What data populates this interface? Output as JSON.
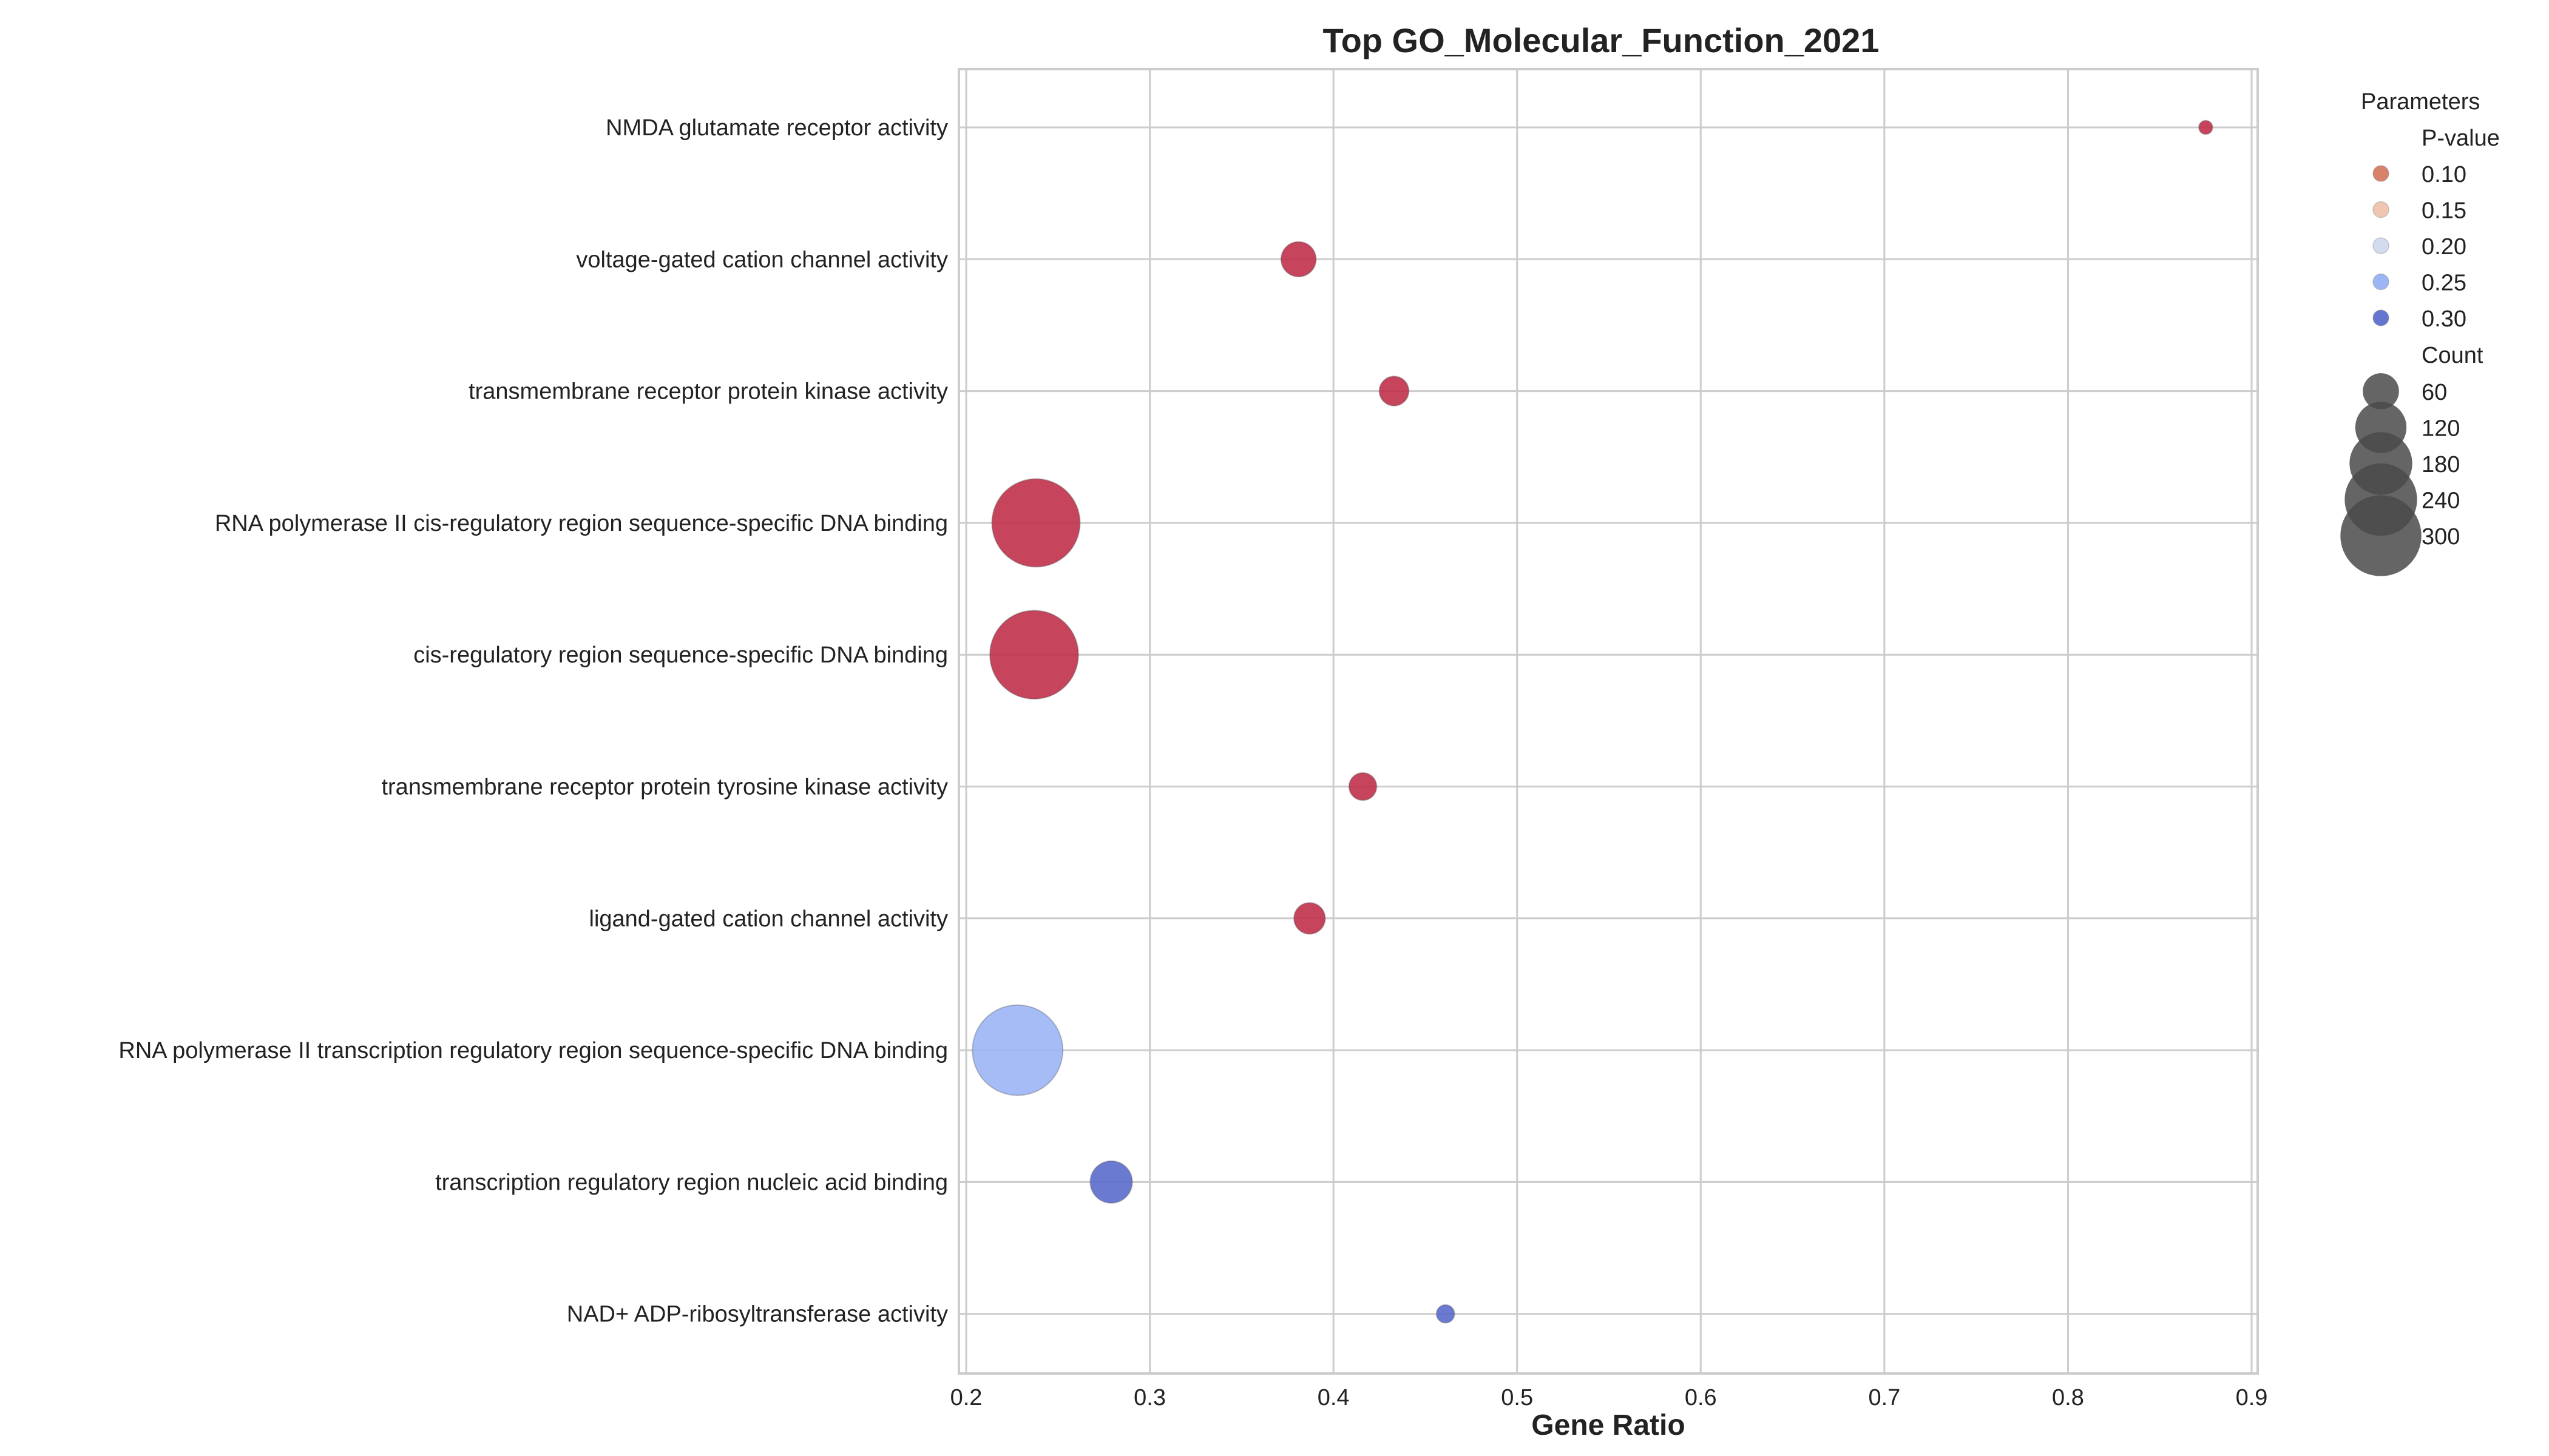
{
  "chart_data": {
    "type": "scatter",
    "title": "Top GO_Molecular_Function_2021",
    "xlabel": "Gene Ratio",
    "ylabel": "",
    "xlim": [
      0.2,
      0.9
    ],
    "xticks": [
      "0.2",
      "0.3",
      "0.4",
      "0.5",
      "0.6",
      "0.7",
      "0.8",
      "0.9"
    ],
    "grid": true,
    "categories": [
      "NMDA glutamate receptor activity",
      "voltage-gated cation channel activity",
      "transmembrane receptor protein kinase activity",
      "RNA polymerase II cis-regulatory region sequence-specific DNA binding",
      "cis-regulatory region sequence-specific DNA binding",
      "transmembrane receptor protein tyrosine kinase activity",
      "ligand-gated cation channel activity",
      "RNA polymerase II transcription regulatory region sequence-specific DNA binding",
      "transcription regulatory region nucleic acid binding",
      "NAD+ ADP-ribosyltransferase activity"
    ],
    "points": [
      {
        "term": "NMDA glutamate receptor activity",
        "gene_ratio": 0.875,
        "count": 7,
        "p_value": 0.02
      },
      {
        "term": "voltage-gated cation channel activity",
        "gene_ratio": 0.381,
        "count": 45,
        "p_value": 0.03
      },
      {
        "term": "transmembrane receptor protein kinase activity",
        "gene_ratio": 0.433,
        "count": 32,
        "p_value": 0.03
      },
      {
        "term": "RNA polymerase II cis-regulatory region sequence-specific DNA binding",
        "gene_ratio": 0.238,
        "count": 285,
        "p_value": 0.035
      },
      {
        "term": "cis-regulatory region sequence-specific DNA binding",
        "gene_ratio": 0.237,
        "count": 288,
        "p_value": 0.035
      },
      {
        "term": "transmembrane receptor protein tyrosine kinase activity",
        "gene_ratio": 0.416,
        "count": 28,
        "p_value": 0.04
      },
      {
        "term": "ligand-gated cation channel activity",
        "gene_ratio": 0.387,
        "count": 36,
        "p_value": 0.04
      },
      {
        "term": "RNA polymerase II transcription regulatory region sequence-specific DNA binding",
        "gene_ratio": 0.228,
        "count": 300,
        "p_value": 0.26
      },
      {
        "term": "transcription regulatory region nucleic acid binding",
        "gene_ratio": 0.279,
        "count": 65,
        "p_value": 0.32
      },
      {
        "term": "NAD+ ADP-ribosyltransferase activity",
        "gene_ratio": 0.461,
        "count": 12,
        "p_value": 0.33
      }
    ],
    "legend": {
      "title": "Parameters",
      "placement": "right, outside",
      "pvalue_title": "P-value",
      "pvalue_items": [
        {
          "label": "0.10",
          "color": "#d8826a"
        },
        {
          "label": "0.15",
          "color": "#efc6b0"
        },
        {
          "label": "0.20",
          "color": "#d3dcef"
        },
        {
          "label": "0.25",
          "color": "#9cb5f5"
        },
        {
          "label": "0.30",
          "color": "#6476d0"
        }
      ],
      "count_title": "Count",
      "count_items": [
        "60",
        "120",
        "180",
        "240",
        "300"
      ]
    },
    "colors": {
      "low_p": "#c0304a",
      "mid_p": "#9cb5f5",
      "high_p": "#5b6ccc",
      "legend_count_marker": "#4a4a4a",
      "grid": "#cccccc",
      "axes_frame": "#cccccc"
    }
  }
}
